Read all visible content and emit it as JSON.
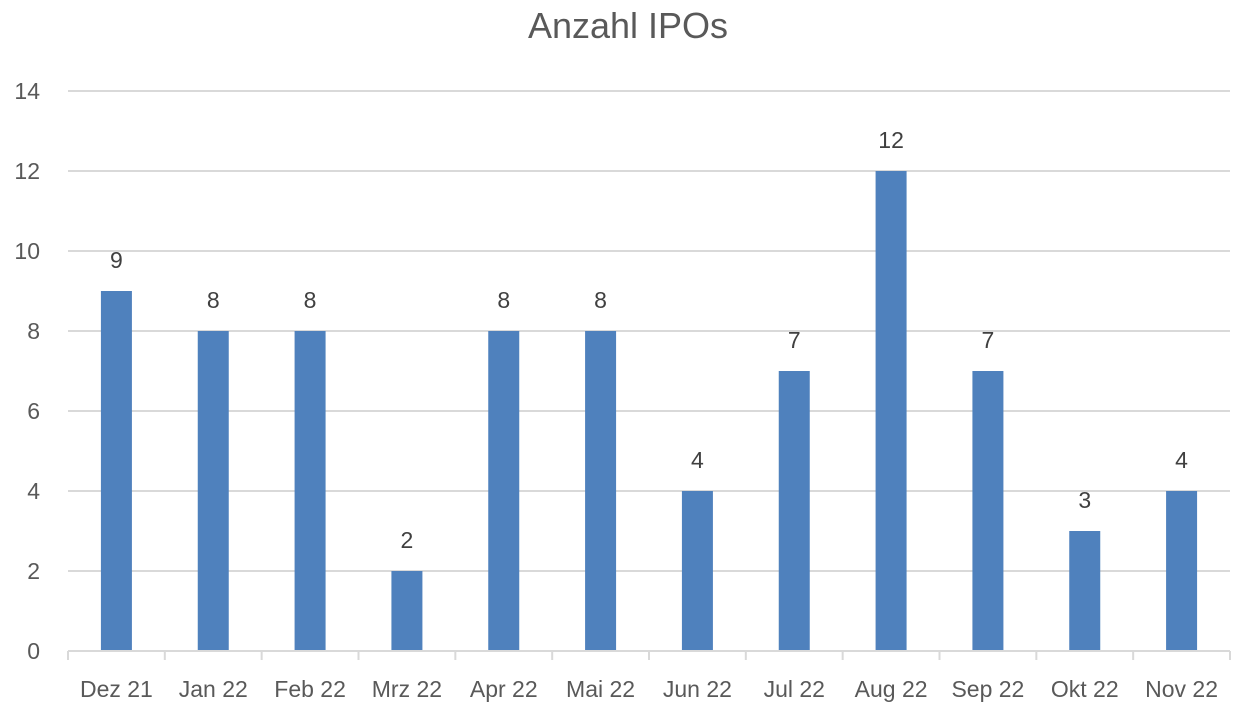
{
  "chart_data": {
    "type": "bar",
    "title": "Anzahl IPOs",
    "xlabel": "",
    "ylabel": "",
    "categories": [
      "Dez 21",
      "Jan 22",
      "Feb 22",
      "Mrz 22",
      "Apr 22",
      "Mai 22",
      "Jun 22",
      "Jul 22",
      "Aug 22",
      "Sep 22",
      "Okt 22",
      "Nov 22"
    ],
    "values": [
      9,
      8,
      8,
      2,
      8,
      8,
      4,
      7,
      12,
      7,
      3,
      4
    ],
    "data_labels": [
      "9",
      "8",
      "8",
      "2",
      "8",
      "8",
      "4",
      "7",
      "12",
      "7",
      "3",
      "4"
    ],
    "ylim": [
      0,
      14
    ],
    "yticks": [
      0,
      2,
      4,
      6,
      8,
      10,
      12,
      14
    ],
    "ytick_labels": [
      "0",
      "2",
      "4",
      "6",
      "8",
      "10",
      "12",
      "14"
    ],
    "grid": true,
    "legend": "none",
    "colors": {
      "bar": "#4f81bd",
      "grid": "#d9d9d9",
      "axis": "#d9d9d9",
      "text": "#595959",
      "data_label": "#404040"
    }
  }
}
